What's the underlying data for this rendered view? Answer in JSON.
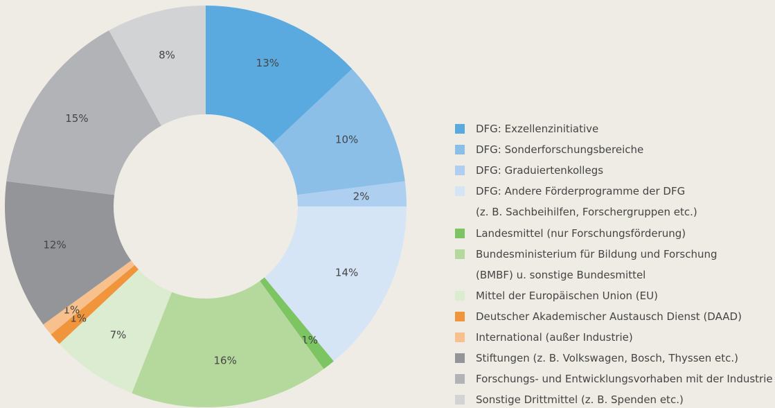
{
  "chart_data": {
    "type": "donut",
    "series": [
      {
        "name": "DFG: Exzellenzinitiative",
        "color": "#5aaae0",
        "value": 13,
        "value_label": "13%"
      },
      {
        "name": "DFG: Sonderforschungsbereiche",
        "color": "#8bbfe8",
        "value": 10,
        "value_label": "10%"
      },
      {
        "name": "DFG: Graduiertenkollegs",
        "color": "#aecff0",
        "value": 2,
        "value_label": "2%"
      },
      {
        "name": "DFG: Andere Förderprogramme der DFG\n(z. B. Sachbeihilfen, Forschergruppen etc.)",
        "color": "#d5e5f5",
        "value": 14,
        "value_label": "14%"
      },
      {
        "name": "Landesmittel (nur Forschungsförderung)",
        "color": "#7dc462",
        "value": 1,
        "value_label": "1%"
      },
      {
        "name": "Bundesministerium für Bildung und Forschung\n(BMBF) u. sonstige Bundesmittel",
        "color": "#b5d99c",
        "value": 16,
        "value_label": "16%"
      },
      {
        "name": "Mittel der Europäischen Union (EU)",
        "color": "#dcecd0",
        "value": 7,
        "value_label": "7%"
      },
      {
        "name": "Deutscher Akademischer Austausch Dienst (DAAD)",
        "color": "#f0953c",
        "value": 1,
        "value_label": "1%"
      },
      {
        "name": "International (außer Industrie)",
        "color": "#f8c08c",
        "value": 1,
        "value_label": "1%"
      },
      {
        "name": "Stiftungen (z. B. Volkswagen, Bosch, Thyssen etc.)",
        "color": "#939598",
        "value": 12,
        "value_label": "12%"
      },
      {
        "name": "Forschungs- und Entwicklungsvorhaben mit der Industrie",
        "color": "#b1b3b6",
        "value": 15,
        "value_label": "15%"
      },
      {
        "name": "Sonstige Drittmittel (z. B. Spenden etc.)",
        "color": "#d1d3d4",
        "value": 8,
        "value_label": "8%"
      }
    ]
  }
}
